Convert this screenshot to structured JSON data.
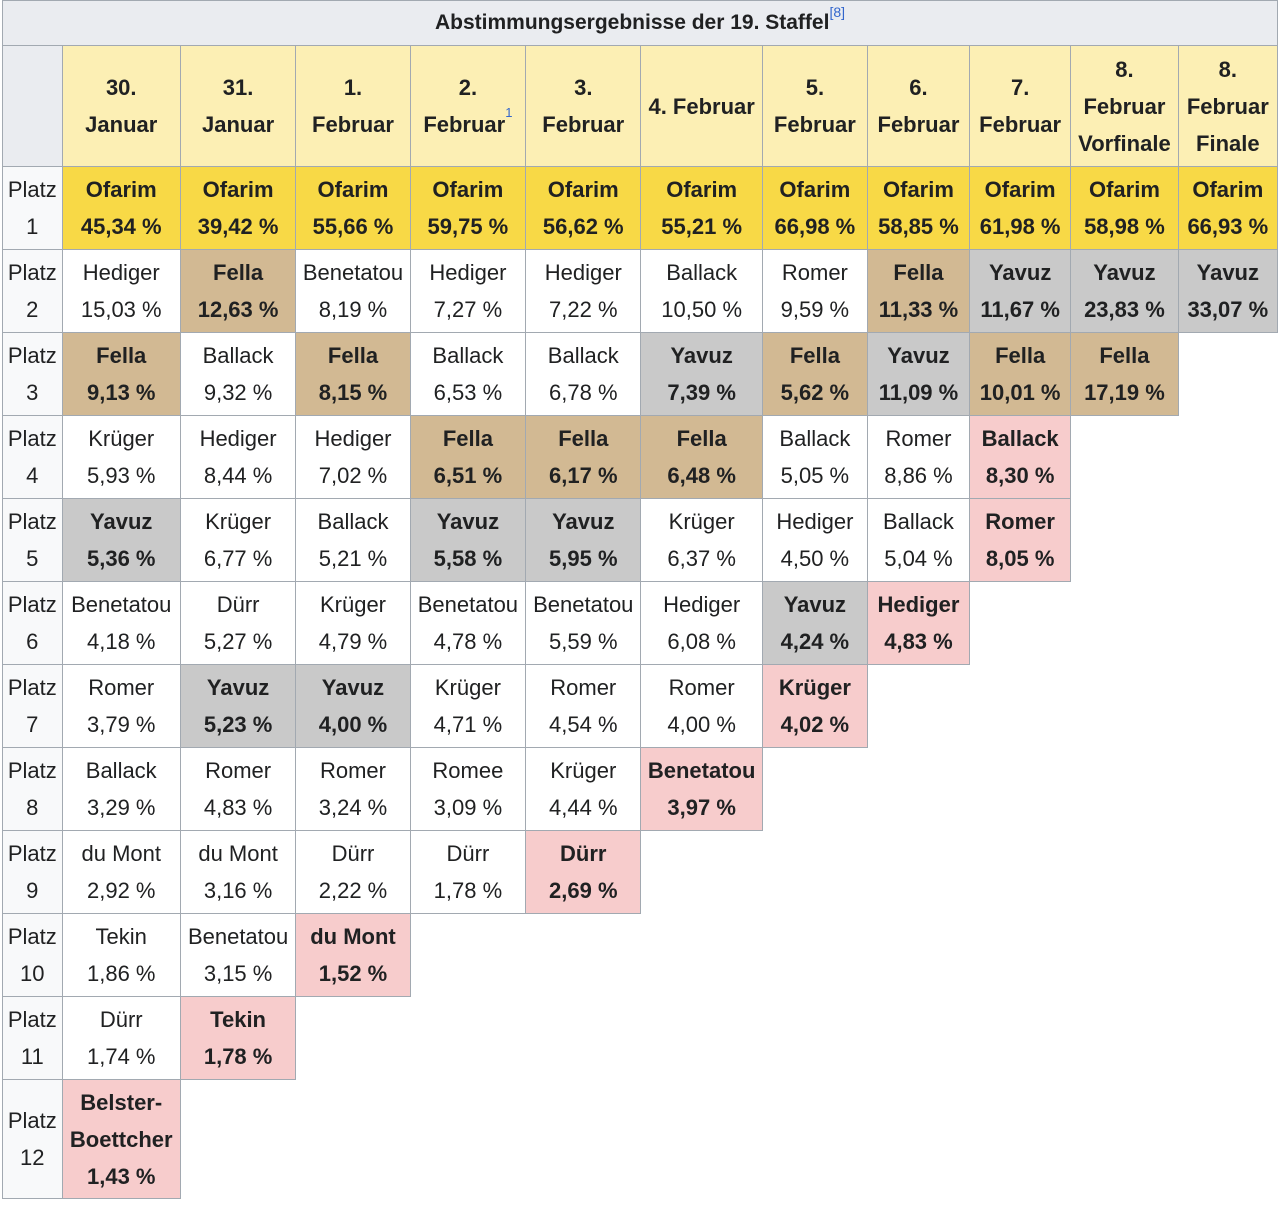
{
  "title": "Abstimmungsergebnisse der 19. Staffel",
  "title_ref": "[8]",
  "columns": [
    {
      "line1": "30.",
      "line2": "Januar",
      "line3": ""
    },
    {
      "line1": "31.",
      "line2": "Januar",
      "line3": ""
    },
    {
      "line1": "1.",
      "line2": "Februar",
      "line3": ""
    },
    {
      "line1": "2.",
      "line2": "Februar",
      "line3": "",
      "note": "1"
    },
    {
      "line1": "3.",
      "line2": "Februar",
      "line3": ""
    },
    {
      "line1": "4. Februar",
      "line2": "",
      "line3": ""
    },
    {
      "line1": "5.",
      "line2": "Februar",
      "line3": ""
    },
    {
      "line1": "6.",
      "line2": "Februar",
      "line3": ""
    },
    {
      "line1": "7.",
      "line2": "Februar",
      "line3": ""
    },
    {
      "line1": "8.",
      "line2": "Februar",
      "line3": "Vorfinale"
    },
    {
      "line1": "8.",
      "line2": "Februar",
      "line3": "Finale"
    }
  ],
  "rows": [
    {
      "label1": "Platz",
      "label2": "1",
      "cells": [
        {
          "name": "Ofarim",
          "pct": "45,34 %",
          "style": "first"
        },
        {
          "name": "Ofarim",
          "pct": "39,42 %",
          "style": "first"
        },
        {
          "name": "Ofarim",
          "pct": "55,66 %",
          "style": "first"
        },
        {
          "name": "Ofarim",
          "pct": "59,75 %",
          "style": "first"
        },
        {
          "name": "Ofarim",
          "pct": "56,62 %",
          "style": "first"
        },
        {
          "name": "Ofarim",
          "pct": "55,21 %",
          "style": "first"
        },
        {
          "name": "Ofarim",
          "pct": "66,98 %",
          "style": "first"
        },
        {
          "name": "Ofarim",
          "pct": "58,85 %",
          "style": "first"
        },
        {
          "name": "Ofarim",
          "pct": "61,98 %",
          "style": "first"
        },
        {
          "name": "Ofarim",
          "pct": "58,98 %",
          "style": "first"
        },
        {
          "name": "Ofarim",
          "pct": "66,93 %",
          "style": "first"
        }
      ]
    },
    {
      "label1": "Platz",
      "label2": "2",
      "cells": [
        {
          "name": "Hediger",
          "pct": "15,03 %",
          "style": ""
        },
        {
          "name": "Fella",
          "pct": "12,63 %",
          "style": "third"
        },
        {
          "name": "Benetatou",
          "pct": "8,19 %",
          "style": ""
        },
        {
          "name": "Hediger",
          "pct": "7,27 %",
          "style": ""
        },
        {
          "name": "Hediger",
          "pct": "7,22 %",
          "style": ""
        },
        {
          "name": "Ballack",
          "pct": "10,50 %",
          "style": ""
        },
        {
          "name": "Romer",
          "pct": "9,59 %",
          "style": ""
        },
        {
          "name": "Fella",
          "pct": "11,33 %",
          "style": "third"
        },
        {
          "name": "Yavuz",
          "pct": "11,67 %",
          "style": "second"
        },
        {
          "name": "Yavuz",
          "pct": "23,83 %",
          "style": "second"
        },
        {
          "name": "Yavuz",
          "pct": "33,07 %",
          "style": "second"
        }
      ]
    },
    {
      "label1": "Platz",
      "label2": "3",
      "cells": [
        {
          "name": "Fella",
          "pct": "9,13 %",
          "style": "third"
        },
        {
          "name": "Ballack",
          "pct": "9,32 %",
          "style": ""
        },
        {
          "name": "Fella",
          "pct": "8,15 %",
          "style": "third"
        },
        {
          "name": "Ballack",
          "pct": "6,53 %",
          "style": ""
        },
        {
          "name": "Ballack",
          "pct": "6,78 %",
          "style": ""
        },
        {
          "name": "Yavuz",
          "pct": "7,39 %",
          "style": "second"
        },
        {
          "name": "Fella",
          "pct": "5,62 %",
          "style": "third"
        },
        {
          "name": "Yavuz",
          "pct": "11,09 %",
          "style": "second"
        },
        {
          "name": "Fella",
          "pct": "10,01 %",
          "style": "third"
        },
        {
          "name": "Fella",
          "pct": "17,19 %",
          "style": "third"
        }
      ]
    },
    {
      "label1": "Platz",
      "label2": "4",
      "cells": [
        {
          "name": "Krüger",
          "pct": "5,93 %",
          "style": ""
        },
        {
          "name": "Hediger",
          "pct": "8,44 %",
          "style": ""
        },
        {
          "name": "Hediger",
          "pct": "7,02 %",
          "style": ""
        },
        {
          "name": "Fella",
          "pct": "6,51 %",
          "style": "third"
        },
        {
          "name": "Fella",
          "pct": "6,17 %",
          "style": "third"
        },
        {
          "name": "Fella",
          "pct": "6,48 %",
          "style": "third"
        },
        {
          "name": "Ballack",
          "pct": "5,05 %",
          "style": ""
        },
        {
          "name": "Romer",
          "pct": "8,86 %",
          "style": ""
        },
        {
          "name": "Ballack",
          "pct": "8,30 %",
          "style": "elim"
        }
      ]
    },
    {
      "label1": "Platz",
      "label2": "5",
      "cells": [
        {
          "name": "Yavuz",
          "pct": "5,36 %",
          "style": "second"
        },
        {
          "name": "Krüger",
          "pct": "6,77 %",
          "style": ""
        },
        {
          "name": "Ballack",
          "pct": "5,21 %",
          "style": ""
        },
        {
          "name": "Yavuz",
          "pct": "5,58 %",
          "style": "second"
        },
        {
          "name": "Yavuz",
          "pct": "5,95 %",
          "style": "second"
        },
        {
          "name": "Krüger",
          "pct": "6,37 %",
          "style": ""
        },
        {
          "name": "Hediger",
          "pct": "4,50 %",
          "style": ""
        },
        {
          "name": "Ballack",
          "pct": "5,04 %",
          "style": ""
        },
        {
          "name": "Romer",
          "pct": "8,05 %",
          "style": "elim"
        }
      ]
    },
    {
      "label1": "Platz",
      "label2": "6",
      "cells": [
        {
          "name": "Benetatou",
          "pct": "4,18 %",
          "style": ""
        },
        {
          "name": "Dürr",
          "pct": "5,27 %",
          "style": ""
        },
        {
          "name": "Krüger",
          "pct": "4,79 %",
          "style": ""
        },
        {
          "name": "Benetatou",
          "pct": "4,78 %",
          "style": ""
        },
        {
          "name": "Benetatou",
          "pct": "5,59 %",
          "style": ""
        },
        {
          "name": "Hediger",
          "pct": "6,08 %",
          "style": ""
        },
        {
          "name": "Yavuz",
          "pct": "4,24 %",
          "style": "second"
        },
        {
          "name": "Hediger",
          "pct": "4,83 %",
          "style": "elim"
        }
      ]
    },
    {
      "label1": "Platz",
      "label2": "7",
      "cells": [
        {
          "name": "Romer",
          "pct": "3,79 %",
          "style": ""
        },
        {
          "name": "Yavuz",
          "pct": "5,23 %",
          "style": "second"
        },
        {
          "name": "Yavuz",
          "pct": "4,00 %",
          "style": "second"
        },
        {
          "name": "Krüger",
          "pct": "4,71 %",
          "style": ""
        },
        {
          "name": "Romer",
          "pct": "4,54 %",
          "style": ""
        },
        {
          "name": "Romer",
          "pct": "4,00 %",
          "style": ""
        },
        {
          "name": "Krüger",
          "pct": "4,02 %",
          "style": "elim"
        }
      ]
    },
    {
      "label1": "Platz",
      "label2": "8",
      "cells": [
        {
          "name": "Ballack",
          "pct": "3,29 %",
          "style": ""
        },
        {
          "name": "Romer",
          "pct": "4,83 %",
          "style": ""
        },
        {
          "name": "Romer",
          "pct": "3,24 %",
          "style": ""
        },
        {
          "name": "Romee",
          "pct": "3,09 %",
          "style": ""
        },
        {
          "name": "Krüger",
          "pct": "4,44 %",
          "style": ""
        },
        {
          "name": "Benetatou",
          "pct": "3,97 %",
          "style": "elim"
        }
      ]
    },
    {
      "label1": "Platz",
      "label2": "9",
      "cells": [
        {
          "name": "du Mont",
          "pct": "2,92 %",
          "style": ""
        },
        {
          "name": "du Mont",
          "pct": "3,16 %",
          "style": ""
        },
        {
          "name": "Dürr",
          "pct": "2,22 %",
          "style": ""
        },
        {
          "name": "Dürr",
          "pct": "1,78 %",
          "style": ""
        },
        {
          "name": "Dürr",
          "pct": "2,69 %",
          "style": "elim"
        }
      ]
    },
    {
      "label1": "Platz",
      "label2": "10",
      "cells": [
        {
          "name": "Tekin",
          "pct": "1,86 %",
          "style": ""
        },
        {
          "name": "Benetatou",
          "pct": "3,15 %",
          "style": ""
        },
        {
          "name": "du Mont",
          "pct": "1,52 %",
          "style": "elim"
        }
      ]
    },
    {
      "label1": "Platz",
      "label2": "11",
      "cells": [
        {
          "name": "Dürr",
          "pct": "1,74 %",
          "style": ""
        },
        {
          "name": "Tekin",
          "pct": "1,78 %",
          "style": "elim"
        }
      ]
    },
    {
      "label1": "Platz",
      "label2": "12",
      "cells": [
        {
          "name": "Belster-\nBoettcher",
          "name_line1": "Belster-",
          "name_line2": "Boettcher",
          "pct": "1,43 %",
          "style": "elim"
        }
      ]
    }
  ]
}
